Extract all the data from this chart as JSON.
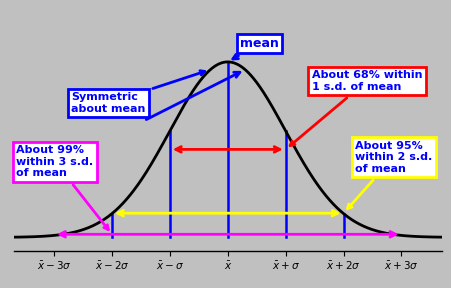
{
  "bg_color": "#c0c0c0",
  "curve_color": "#000000",
  "line_color": "#0000ff",
  "mu": 0,
  "sigma": 1,
  "x_ticks": [
    -3,
    -2,
    -1,
    0,
    1,
    2,
    3
  ],
  "x_tick_labels": [
    "$\\bar{x}-3\\sigma$",
    "$\\bar{x}-2\\sigma$",
    "$\\bar{x}-\\sigma$",
    "$\\bar{x}$",
    "$\\bar{x}+\\sigma$",
    "$\\bar{x}+2\\sigma$",
    "$\\bar{x}+3\\sigma$"
  ],
  "vertical_lines_x": [
    -2,
    -1,
    0,
    1,
    2
  ],
  "ylim": [
    -0.03,
    0.52
  ],
  "xlim": [
    -3.7,
    3.7
  ],
  "arrow_68_color": "#ff0000",
  "arrow_95_color": "#ffff00",
  "arrow_99_color": "#ff00ff",
  "text_color": "#0000ff",
  "box_mean_text": "mean",
  "box_sym_text": "Symmetric\nabout mean",
  "box_68_text": "About 68% within\n1 s.d. of mean",
  "box_95_text": "About 95%\nwithin 2 s.d.\nof mean",
  "box_99_text": "About 99%\nwithin 3 s.d.\nof mean"
}
